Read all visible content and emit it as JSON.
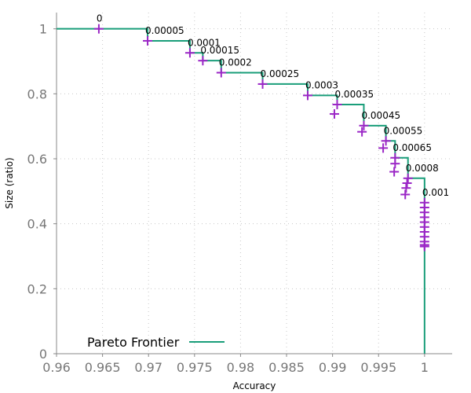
{
  "chart_data": {
    "type": "scatter",
    "title": "",
    "xlabel": "Accuracy",
    "ylabel": "Size (ratio)",
    "xlim": [
      0.96,
      1.003
    ],
    "ylim": [
      0,
      1.05
    ],
    "xticks": [
      0.96,
      0.965,
      0.97,
      0.975,
      0.98,
      0.985,
      0.99,
      0.995,
      1
    ],
    "xtick_labels": [
      "0.96",
      "0.965",
      "0.97",
      "0.975",
      "0.98",
      "0.985",
      "0.99",
      "0.995",
      "1"
    ],
    "yticks": [
      0,
      0.2,
      0.4,
      0.6,
      0.8,
      1
    ],
    "ytick_labels": [
      "0",
      "0.2",
      "0.4",
      "0.6",
      "0.8",
      "1"
    ],
    "grid": true,
    "legend": {
      "placement": "lower-left",
      "entries": [
        "Pareto Frontier"
      ]
    },
    "colors": {
      "frontier": "#1a9e7a",
      "points": "#9b27c6",
      "tick_text": "#777777",
      "grid": "#c8c8c8"
    },
    "series": [
      {
        "name": "Pareto Frontier",
        "kind": "step",
        "x": [
          0.9646,
          0.9699,
          0.9745,
          0.9759,
          0.9779,
          0.9824,
          0.9873,
          0.9905,
          0.9934,
          0.9958,
          0.9968,
          0.9982,
          1.0,
          1.0
        ],
        "y": [
          1.0,
          0.963,
          0.926,
          0.902,
          0.865,
          0.83,
          0.795,
          0.767,
          0.702,
          0.655,
          0.603,
          0.54,
          0.465,
          0.0
        ]
      },
      {
        "kind": "points",
        "x": [
          0.9646,
          0.9699,
          0.9745,
          0.9759,
          0.9779,
          0.9824,
          0.9873,
          0.9905,
          0.9902,
          0.9934,
          0.9932,
          0.9958,
          0.9955,
          0.9968,
          0.9968,
          0.9967,
          0.9982,
          0.9981,
          0.998,
          0.9979,
          1.0,
          1.0,
          1.0,
          1.0,
          1.0,
          1.0,
          1.0,
          1.0,
          1.0,
          1.0,
          1.0
        ],
        "y": [
          1.0,
          0.963,
          0.926,
          0.902,
          0.865,
          0.83,
          0.795,
          0.767,
          0.738,
          0.702,
          0.683,
          0.655,
          0.633,
          0.603,
          0.585,
          0.56,
          0.54,
          0.525,
          0.51,
          0.49,
          0.465,
          0.45,
          0.435,
          0.42,
          0.405,
          0.39,
          0.375,
          0.36,
          0.345,
          0.335,
          0.33
        ]
      }
    ],
    "annotations": [
      {
        "text": "0",
        "x": 0.9646,
        "y": 1.0
      },
      {
        "text": "0.00005",
        "x": 0.9699,
        "y": 0.963
      },
      {
        "text": "0.0001",
        "x": 0.9745,
        "y": 0.926
      },
      {
        "text": "0.00015",
        "x": 0.9759,
        "y": 0.902
      },
      {
        "text": "0.0002",
        "x": 0.9779,
        "y": 0.865
      },
      {
        "text": "0.00025",
        "x": 0.9824,
        "y": 0.83
      },
      {
        "text": "0.0003",
        "x": 0.9873,
        "y": 0.795
      },
      {
        "text": "0.00035",
        "x": 0.9905,
        "y": 0.767
      },
      {
        "text": "0.00045",
        "x": 0.9934,
        "y": 0.702
      },
      {
        "text": "0.00055",
        "x": 0.9958,
        "y": 0.655
      },
      {
        "text": "0.00065",
        "x": 0.9968,
        "y": 0.603
      },
      {
        "text": "0.0008",
        "x": 0.9982,
        "y": 0.54
      },
      {
        "text": "0.001",
        "x": 1.0,
        "y": 0.465
      }
    ]
  }
}
